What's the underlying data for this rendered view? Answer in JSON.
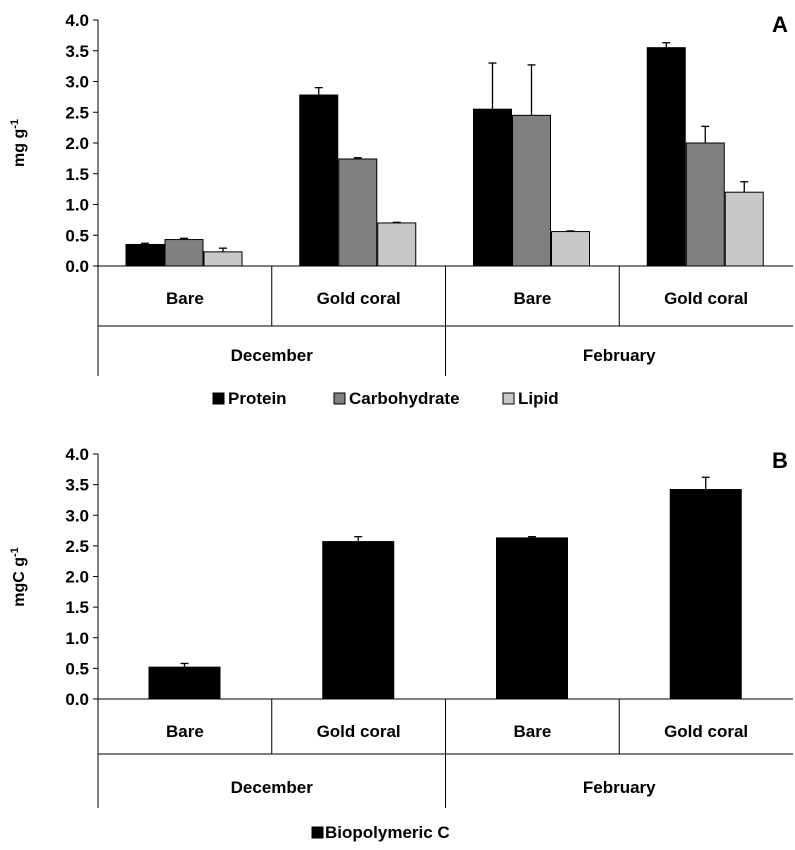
{
  "chart_data": [
    {
      "type": "bar",
      "panel_label": "A",
      "ylabel": "mg g",
      "ylabel_superscript": "-1",
      "ylim": [
        0,
        4
      ],
      "yticks": [
        "0.0",
        "0.5",
        "1.0",
        "1.5",
        "2.0",
        "2.5",
        "3.0",
        "3.5",
        "4.0"
      ],
      "ytick_values": [
        0,
        0.5,
        1,
        1.5,
        2,
        2.5,
        3,
        3.5,
        4
      ],
      "categories": [
        "Bare",
        "Gold coral",
        "Bare",
        "Gold coral"
      ],
      "groups": [
        {
          "label": "December",
          "span": 2
        },
        {
          "label": "February",
          "span": 2
        }
      ],
      "series": [
        {
          "name": "Protein",
          "color": "#000000",
          "values": [
            0.35,
            2.78,
            2.55,
            3.55
          ],
          "errors": [
            0.02,
            0.12,
            0.75,
            0.08
          ]
        },
        {
          "name": "Carbohydrate",
          "color": "#808080",
          "values": [
            0.43,
            1.74,
            2.45,
            2.0
          ],
          "errors": [
            0.02,
            0.02,
            0.82,
            0.27
          ]
        },
        {
          "name": "Lipid",
          "color": "#c8c8c8",
          "values": [
            0.23,
            0.7,
            0.56,
            1.2
          ],
          "errors": [
            0.06,
            0.01,
            0.01,
            0.17
          ]
        }
      ],
      "legend_position": "bottom",
      "grid": false
    },
    {
      "type": "bar",
      "panel_label": "B",
      "ylabel": "mgC g",
      "ylabel_superscript": "-1",
      "ylim": [
        0,
        4
      ],
      "yticks": [
        "0.0",
        "0.5",
        "1.0",
        "1.5",
        "2.0",
        "2.5",
        "3.0",
        "3.5",
        "4.0"
      ],
      "ytick_values": [
        0,
        0.5,
        1,
        1.5,
        2,
        2.5,
        3,
        3.5,
        4
      ],
      "categories": [
        "Bare",
        "Gold coral",
        "Bare",
        "Gold coral"
      ],
      "groups": [
        {
          "label": "December",
          "span": 2
        },
        {
          "label": "February",
          "span": 2
        }
      ],
      "series": [
        {
          "name": "Biopolymeric C",
          "color": "#000000",
          "values": [
            0.52,
            2.57,
            2.63,
            3.42
          ],
          "errors": [
            0.06,
            0.08,
            0.02,
            0.2
          ]
        }
      ],
      "legend_position": "bottom-left",
      "grid": false
    }
  ]
}
